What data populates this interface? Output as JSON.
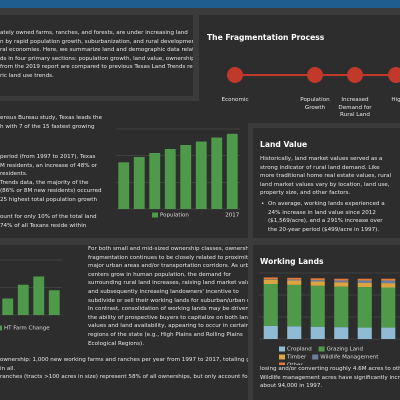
{
  "intro": {
    "lines": [
      "ately owned farms, ranches, and forests, are under increasing land",
      "n by rapid population growth, suburbanization, and rural development,",
      "ral economies. Here, we summarize land and demographic data related to",
      "ds in four primary sections: population growth, land value, ownership size,",
      "from the 2019 report are compared to previous Texas Land Trends reports",
      "ric land use trends."
    ]
  },
  "process": {
    "title": "The Fragmentation Process",
    "steps": [
      "Economic Growth",
      "Population Growth",
      "Increased Demand for Rural Land",
      "Hig"
    ]
  },
  "population": {
    "lines_a": [
      "ensus Bureau study, Texas leads the",
      "h with 7 of the 15 fastest growing"
    ],
    "lines_b": [
      "period (from 1997 to 2017), Texas",
      "M residents, an increase of 48% or",
      "residents.",
      "Trends data, the majority of the",
      "(86% or 8M new residents) occurred",
      "25 highest total population growth"
    ],
    "lines_c": [
      "ount for only 10% of the total land",
      "74% of all Texans reside within"
    ],
    "chart_data": {
      "type": "bar",
      "categories": [
        null,
        null,
        null,
        null,
        null,
        null,
        null,
        "2017"
      ],
      "series": [
        {
          "name": "Population",
          "color": "#4f9a4a",
          "values": [
            17.5,
            19.5,
            21,
            22.5,
            24,
            25.3,
            26.8,
            28.2
          ]
        }
      ],
      "ylim": [
        0,
        30
      ],
      "yticks": [
        0,
        10,
        20,
        30
      ],
      "grid": true
    }
  },
  "land_value": {
    "title": "Land Value",
    "lines": [
      "Historically, land market values served as a",
      "strong indicator of rural land demand. Like",
      "more traditional home real estate values, rural",
      "land market values vary by location, land use,",
      "property size, and other factors."
    ],
    "bullets": [
      [
        "On average, working lands experienced a",
        "24% increase in land value since 2012",
        "($1,569/acre), and a 291% increase over",
        "the 20-year period ($499/acre in 1997)."
      ],
      [
        "The I35 Corridor experienced the",
        "greatest absolute increase in land market",
        "value of any urban area at $7,396/acre."
      ]
    ]
  },
  "ownership": {
    "chart_data": {
      "type": "bar",
      "categories": [
        null,
        null,
        null,
        null
      ],
      "series": [
        {
          "name": "HT Farm Change",
          "color": "#4f9a4a",
          "values": [
            30,
            55,
            70,
            45
          ]
        }
      ],
      "ylim": [
        0,
        100
      ],
      "yticks": [
        0,
        50,
        100
      ],
      "grid": true
    },
    "lines": [
      "For both small and mid-sized ownership classes, ownership",
      "fragmentation continues to be closely related to proximity to",
      "major urban areas and/or transportation corridors. As urban",
      "centers grow in human population, the demand for",
      "surrounding rural land increases, raising land market values",
      "and subsequently increasing landowners' incentive to",
      "subdivide or sell their working lands for suburban/urban use.",
      "In contrast, consolidation of working lands may be driven by",
      "the ability of prospective buyers to capitalize on both land",
      "values and land availability, appearing to occur in certain",
      "regions of the state (e.g., High Plains and Rolling Plains",
      "Ecological Regions)."
    ],
    "bottom_lines": [
      "ownership: 1,000 new working farms and ranches per year from 1997 to 2017, totaling greater than",
      "in all.",
      "ranches (tracts >100 acres in size) represent 58% of all ownerships, but only account for 4% of the land"
    ]
  },
  "working_lands": {
    "title": "Working Lands",
    "chart_data": {
      "type": "stacked-bar",
      "categories": [
        null,
        null,
        null,
        null,
        null,
        null
      ],
      "series": [
        {
          "name": "Cropland",
          "color": "#8fbcd4",
          "values": [
            30,
            29,
            28,
            27,
            26,
            26
          ]
        },
        {
          "name": "Grazing Land",
          "color": "#4f9a4a",
          "values": [
            95,
            94,
            93,
            92,
            92,
            91
          ]
        },
        {
          "name": "Timber",
          "color": "#d9a441",
          "values": [
            10,
            10,
            10,
            10,
            10,
            10
          ]
        },
        {
          "name": "Wildlife Management",
          "color": "#6a7fa0",
          "values": [
            1,
            2,
            3,
            4,
            5,
            6
          ]
        },
        {
          "name": "Other",
          "color": "#e07b39",
          "values": [
            4,
            4,
            4,
            4,
            4,
            4
          ]
        }
      ],
      "ylim": [
        0,
        150
      ],
      "yticks": [
        0,
        50,
        100,
        150
      ],
      "grid": true
    },
    "lines": [
      "losing and/or converting roughly 4.6M acres to other",
      "Wildlife management acres have significantly increased",
      "about 94,000 in 1997."
    ]
  }
}
